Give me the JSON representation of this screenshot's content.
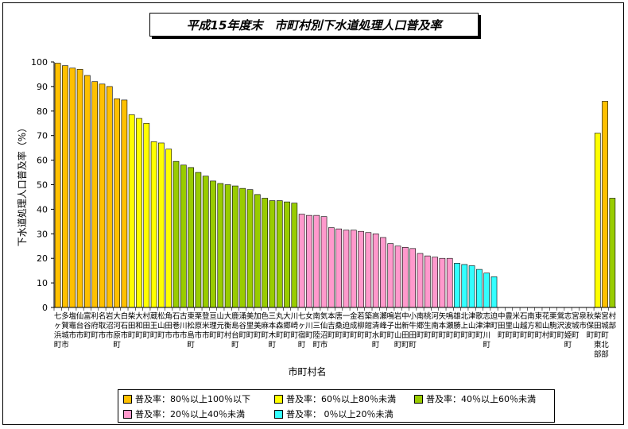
{
  "chart_data": {
    "type": "bar",
    "title": "平成15年度末　市町村別下水道処理人口普及率",
    "xlabel": "市町村名",
    "ylabel": "下水道処理人口普及率（%）",
    "ylim": [
      0,
      100
    ],
    "yticks": [
      0,
      10,
      20,
      30,
      40,
      50,
      60,
      70,
      80,
      90,
      100
    ],
    "gridlines": false,
    "legend_position": "bottom",
    "categories": [
      "七ヶ浜町",
      "多賀城市",
      "塩竈市",
      "仙台市",
      "富谷町",
      "利府町",
      "名取市",
      "岩沼市",
      "大河原町",
      "白石市",
      "柴田町",
      "大和町",
      "村田町",
      "蔵王町",
      "松山町",
      "角田市",
      "石巻市",
      "古川市",
      "東松島町",
      "栗原市",
      "登米市",
      "亘理町",
      "山元町",
      "大衡村",
      "鹿島台町",
      "涌谷町",
      "美里町",
      "加美町",
      "色麻町",
      "三本木町",
      "丸森町",
      "大郷町",
      "川崎町",
      "七ヶ宿町",
      "女川町",
      "南三陸町",
      "気仙沼市",
      "本吉町",
      "唐桑町",
      "一迫町",
      "金成町",
      "若柳町",
      "築館町",
      "高清水町",
      "瀬峰町",
      "鳴子町",
      "岩出山町",
      "中新田町",
      "小牛田町",
      "南郷町",
      "桃生町",
      "河南町",
      "矢本町",
      "鳴瀬町",
      "雄勝町",
      "北上町",
      "津山町",
      "歌津町",
      "志津川町",
      "迫町",
      "中田町",
      "豊里町",
      "米山町",
      "石越町",
      "南方町",
      "東和町",
      "花山村",
      "栗駒町",
      "鶯沢町",
      "志波姫町",
      "宮城町",
      "泉市",
      "秋保町",
      "柴田町東部",
      "宮城町北部",
      "村部"
    ],
    "series": [
      {
        "values": [
          99.5,
          98.5,
          97.5,
          97.0,
          94.5,
          92.0,
          91.0,
          90.0,
          85.0,
          84.5,
          78.5,
          77.0,
          75.0,
          67.5,
          67.0,
          64.5,
          59.5,
          58.0,
          57.0,
          55.0,
          53.5,
          51.5,
          50.5,
          50.0,
          49.5,
          48.5,
          48.0,
          46.0,
          44.5,
          43.5,
          43.5,
          43.0,
          42.5,
          38.0,
          37.5,
          37.5,
          37.0,
          32.5,
          32.0,
          31.5,
          31.5,
          31.0,
          30.5,
          30.0,
          28.5,
          26.0,
          25.0,
          24.5,
          24.0,
          22.0,
          21.0,
          20.5,
          20.0,
          20.0,
          18.0,
          17.5,
          17.0,
          15.5,
          14.0,
          12.5,
          0,
          0,
          0,
          0,
          0,
          0,
          0,
          0,
          0,
          0,
          0,
          0,
          0,
          71.0,
          84.0,
          44.5
        ]
      }
    ],
    "legend": [
      {
        "label": "普及率：80％以上100％以下",
        "color": "#ffc000"
      },
      {
        "label": "普及率：60％以上80％未満",
        "color": "#ffff00"
      },
      {
        "label": "普及率：40％以上60％未満",
        "color": "#99cc00"
      },
      {
        "label": "普及率：20％以上40％未満",
        "color": "#ff99cc"
      },
      {
        "label": "普及率：  0％以上20％未満",
        "color": "#33ffff"
      }
    ]
  }
}
